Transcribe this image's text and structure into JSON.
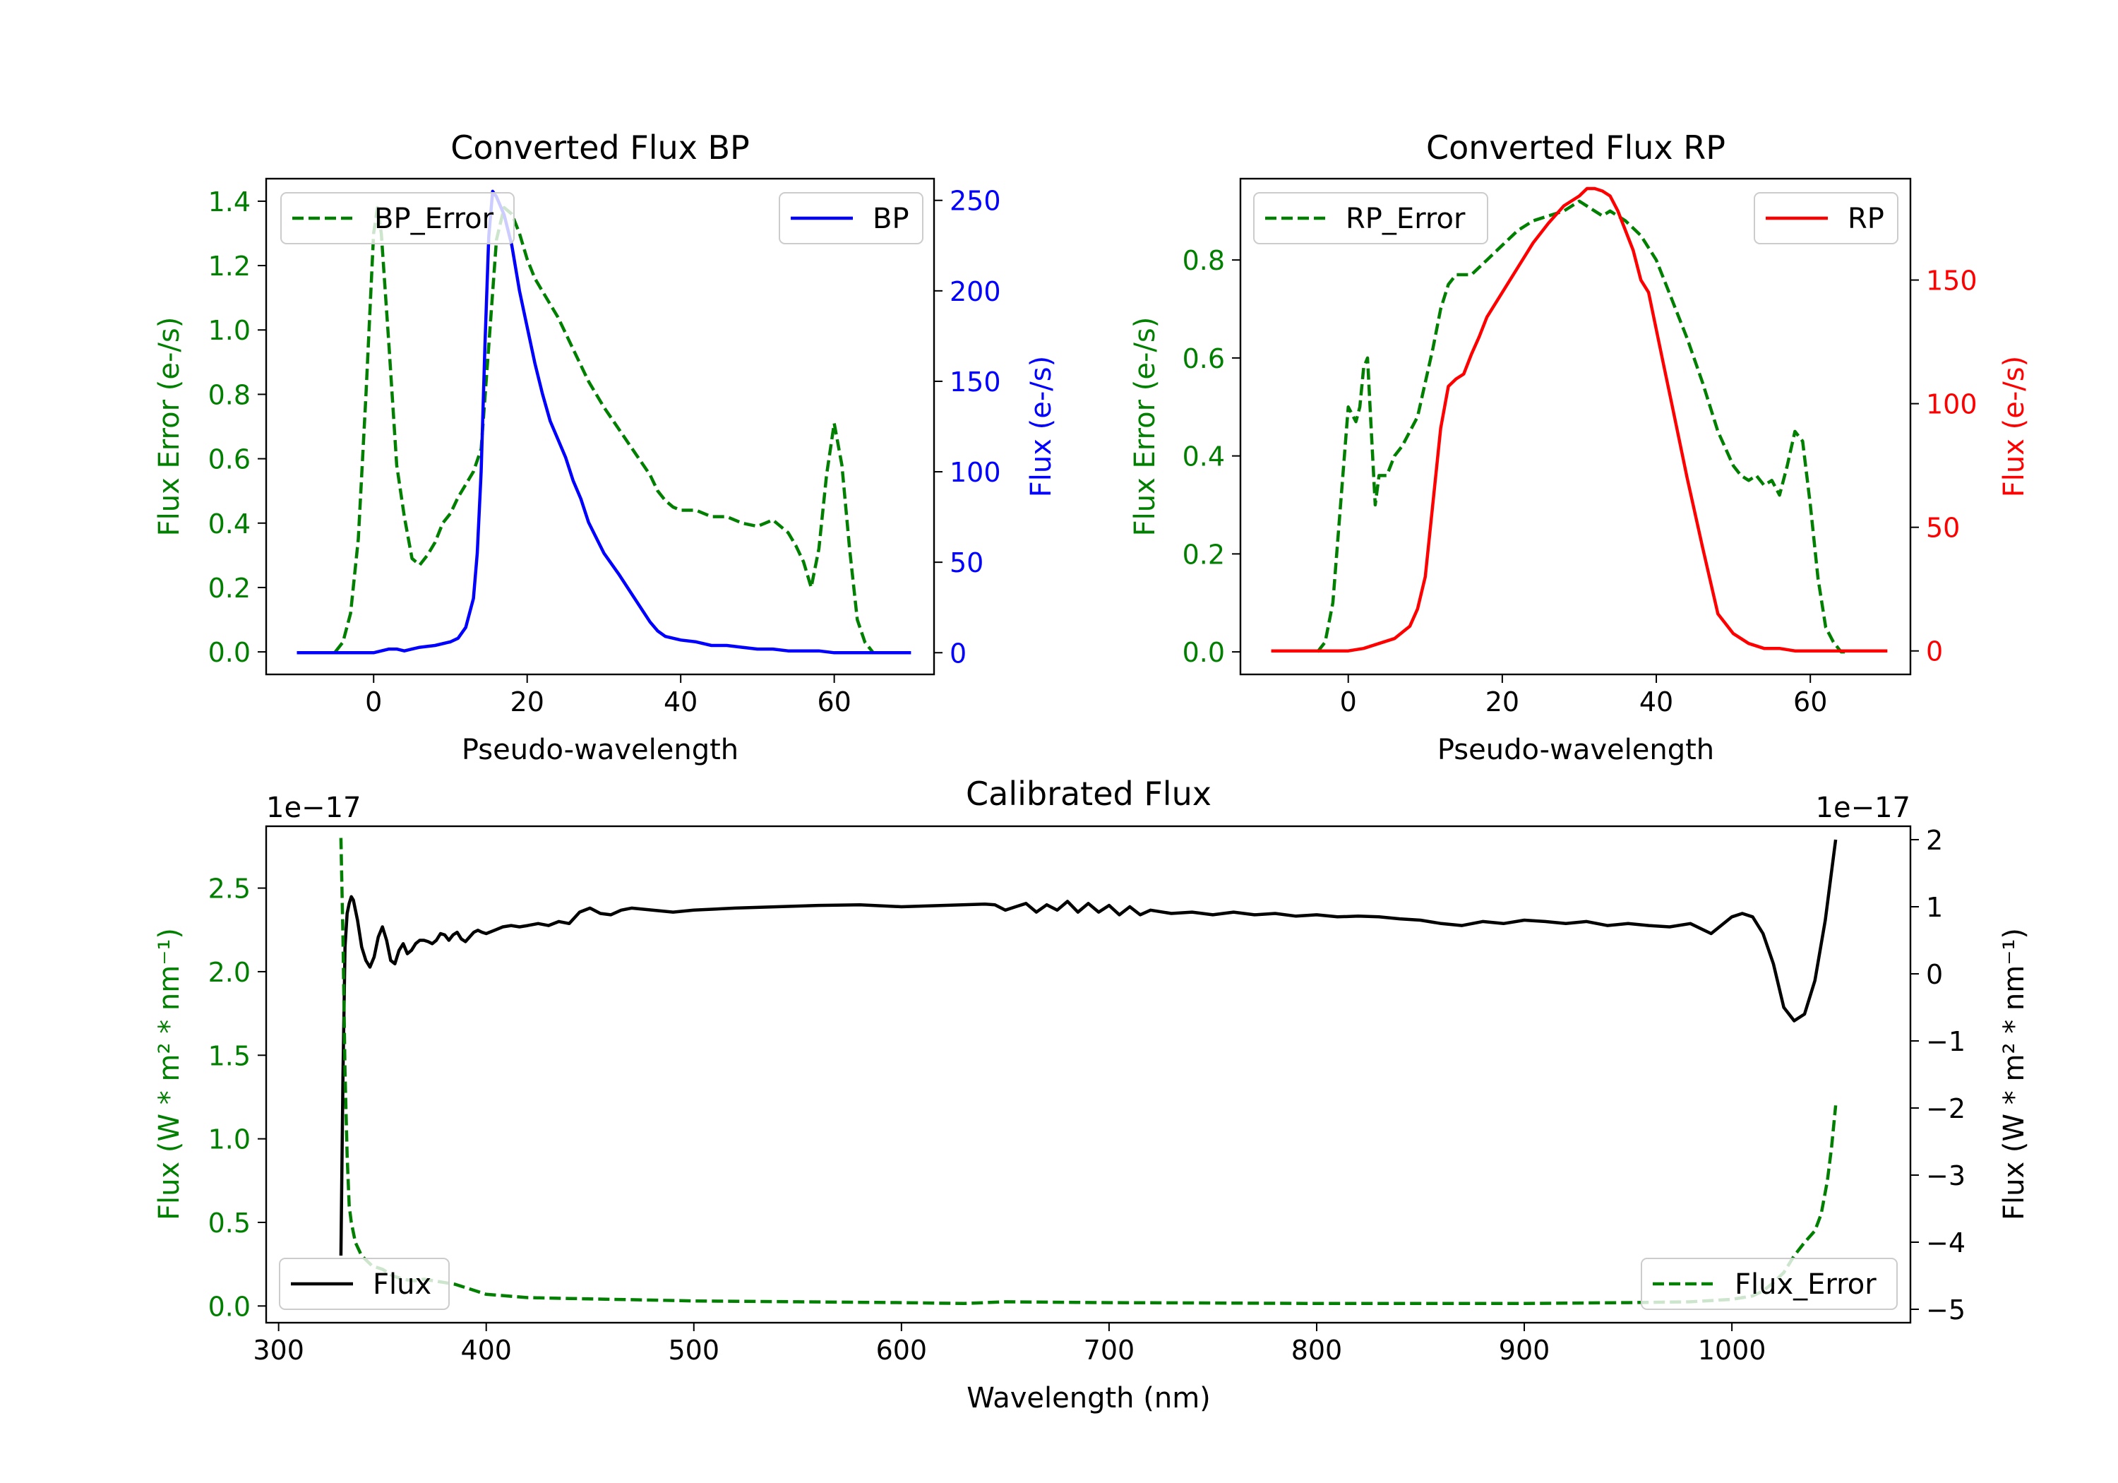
{
  "colors": {
    "green": "#007f00",
    "blue": "#0000ff",
    "red": "#ff0000",
    "black": "#000000"
  },
  "chart_data": [
    {
      "id": "bp",
      "type": "line",
      "title": "Converted Flux BP",
      "xlabel": "Pseudo-wavelength",
      "ylabel_left": "Flux Error (e-/s)",
      "ylabel_right": "Flux (e-/s)",
      "xlim": [
        -14,
        73
      ],
      "ylim_left": [
        -0.07,
        1.47
      ],
      "ylim_right": [
        -12,
        262
      ],
      "xticks": [
        0,
        20,
        40,
        60
      ],
      "yticks_left": [
        0.0,
        0.2,
        0.4,
        0.6,
        0.8,
        1.0,
        1.2,
        1.4
      ],
      "yticks_right": [
        0,
        50,
        100,
        150,
        200,
        250
      ],
      "legend_left": "top-left",
      "legend_right": "top-right",
      "series": [
        {
          "name": "BP_Error",
          "axis": "left",
          "color": "#007f00",
          "dash": "dashed",
          "x": [
            -5,
            -4,
            -3,
            -2,
            -1,
            0,
            0.5,
            1,
            2,
            3,
            4,
            5,
            6,
            7,
            8,
            9,
            10,
            11,
            12,
            13,
            14,
            15,
            16,
            17,
            18,
            19,
            20,
            21,
            22,
            23,
            24,
            25,
            26,
            27,
            28,
            30,
            32,
            34,
            36,
            37,
            38,
            39,
            40,
            42,
            44,
            46,
            48,
            50,
            51,
            52,
            54,
            55,
            56,
            57,
            58,
            59,
            60,
            61,
            62,
            63,
            64,
            65
          ],
          "values": [
            0.0,
            0.03,
            0.12,
            0.35,
            0.8,
            1.3,
            1.38,
            1.3,
            0.95,
            0.58,
            0.42,
            0.29,
            0.27,
            0.3,
            0.34,
            0.4,
            0.43,
            0.48,
            0.52,
            0.56,
            0.63,
            0.95,
            1.28,
            1.38,
            1.36,
            1.3,
            1.22,
            1.16,
            1.12,
            1.08,
            1.04,
            0.99,
            0.94,
            0.89,
            0.84,
            0.76,
            0.69,
            0.62,
            0.55,
            0.5,
            0.47,
            0.45,
            0.44,
            0.44,
            0.42,
            0.42,
            0.4,
            0.39,
            0.4,
            0.41,
            0.37,
            0.33,
            0.28,
            0.2,
            0.32,
            0.55,
            0.71,
            0.58,
            0.32,
            0.1,
            0.03,
            0.0
          ]
        },
        {
          "name": "BP",
          "axis": "right",
          "color": "#0000ff",
          "dash": "solid",
          "x": [
            -10,
            -5,
            0,
            1,
            2,
            3,
            4,
            5,
            6,
            8,
            10,
            11,
            12,
            13,
            13.5,
            14,
            14.5,
            15,
            15.5,
            16,
            17,
            18,
            19,
            20,
            21,
            22,
            23,
            24,
            25,
            26,
            27,
            28,
            30,
            32,
            34,
            36,
            37,
            38,
            40,
            42,
            44,
            46,
            48,
            50,
            52,
            54,
            56,
            58,
            60,
            62,
            65,
            70
          ],
          "values": [
            0,
            0,
            0,
            1,
            2,
            2,
            1,
            2,
            3,
            4,
            6,
            8,
            14,
            30,
            55,
            100,
            170,
            230,
            255,
            252,
            242,
            225,
            200,
            180,
            160,
            143,
            128,
            118,
            108,
            95,
            85,
            72,
            55,
            43,
            30,
            17,
            12,
            9,
            7,
            6,
            4,
            4,
            3,
            2,
            2,
            1,
            1,
            1,
            0,
            0,
            0,
            0
          ]
        }
      ]
    },
    {
      "id": "rp",
      "type": "line",
      "title": "Converted Flux RP",
      "xlabel": "Pseudo-wavelength",
      "ylabel_left": "Flux Error (e-/s)",
      "ylabel_right": "Flux (e-/s)",
      "xlim": [
        -14,
        73
      ],
      "ylim_left": [
        -0.046,
        0.966
      ],
      "ylim_right": [
        -9.5,
        191
      ],
      "xticks": [
        0,
        20,
        40,
        60
      ],
      "yticks_left": [
        0.0,
        0.2,
        0.4,
        0.6,
        0.8
      ],
      "yticks_right": [
        0,
        50,
        100,
        150
      ],
      "legend_left": "top-left",
      "legend_right": "top-right",
      "series": [
        {
          "name": "RP_Error",
          "axis": "left",
          "color": "#007f00",
          "dash": "dashed",
          "x": [
            -4,
            -3,
            -2,
            -1,
            0,
            1,
            1.5,
            2,
            2.5,
            3,
            3.5,
            4,
            5,
            6,
            7,
            8,
            9,
            10,
            11,
            12,
            13,
            14,
            15,
            16,
            18,
            20,
            22,
            24,
            26,
            28,
            30,
            31,
            32,
            33,
            34,
            36,
            38,
            40,
            42,
            44,
            46,
            48,
            50,
            51,
            52,
            53,
            54,
            55,
            56,
            57,
            58,
            59,
            60,
            61,
            62,
            63,
            64,
            65
          ],
          "values": [
            0.0,
            0.02,
            0.1,
            0.3,
            0.5,
            0.47,
            0.5,
            0.58,
            0.6,
            0.45,
            0.3,
            0.36,
            0.36,
            0.4,
            0.42,
            0.45,
            0.48,
            0.55,
            0.62,
            0.7,
            0.75,
            0.77,
            0.77,
            0.77,
            0.8,
            0.83,
            0.86,
            0.88,
            0.89,
            0.9,
            0.92,
            0.91,
            0.9,
            0.89,
            0.9,
            0.88,
            0.85,
            0.8,
            0.72,
            0.64,
            0.55,
            0.45,
            0.38,
            0.36,
            0.35,
            0.36,
            0.34,
            0.35,
            0.32,
            0.38,
            0.45,
            0.43,
            0.3,
            0.15,
            0.05,
            0.02,
            0.0,
            0.0
          ]
        },
        {
          "name": "RP",
          "axis": "right",
          "color": "#ff0000",
          "dash": "solid",
          "x": [
            -10,
            -5,
            0,
            2,
            4,
            6,
            8,
            9,
            10,
            11,
            12,
            13,
            14,
            15,
            16,
            17,
            18,
            19,
            20,
            22,
            24,
            26,
            28,
            30,
            31,
            32,
            33,
            34,
            35,
            36,
            37,
            38,
            39,
            40,
            41,
            42,
            44,
            46,
            48,
            50,
            52,
            54,
            56,
            58,
            60,
            62,
            65,
            70
          ],
          "values": [
            0,
            0,
            0,
            1,
            3,
            5,
            10,
            17,
            30,
            60,
            90,
            107,
            110,
            112,
            120,
            127,
            135,
            140,
            145,
            155,
            165,
            173,
            180,
            184,
            187,
            187,
            186,
            184,
            178,
            170,
            162,
            150,
            145,
            130,
            115,
            100,
            70,
            42,
            15,
            7,
            3,
            1,
            1,
            0,
            0,
            0,
            0,
            0
          ]
        }
      ]
    },
    {
      "id": "calibrated",
      "type": "line",
      "title": "Calibrated Flux",
      "xlabel": "Wavelength (nm)",
      "ylabel_left": "Flux (W * m² * nm⁻¹)",
      "ylabel_right": "Flux (W * m² * nm⁻¹)",
      "offset_left": "1e−17",
      "offset_right": "1e−17",
      "xlim": [
        294,
        1086
      ],
      "ylim_left": [
        -0.1,
        2.87
      ],
      "ylim_right": [
        -5.2,
        2.2
      ],
      "xticks": [
        300,
        400,
        500,
        600,
        700,
        800,
        900,
        1000
      ],
      "yticks_left": [
        0.0,
        0.5,
        1.0,
        1.5,
        2.0,
        2.5
      ],
      "yticks_right": [
        -5,
        -4,
        -3,
        -2,
        -1,
        0,
        1,
        2
      ],
      "legend_left": "bottom-left",
      "legend_right": "bottom-right",
      "series": [
        {
          "name": "Flux",
          "axis": "right",
          "color": "#000000",
          "dash": "solid",
          "x": [
            330,
            331,
            332,
            333,
            334,
            335,
            336,
            338,
            340,
            342,
            344,
            346,
            348,
            350,
            352,
            354,
            356,
            358,
            360,
            362,
            364,
            366,
            368,
            370,
            372,
            374,
            376,
            378,
            380,
            382,
            384,
            386,
            388,
            390,
            392,
            394,
            396,
            398,
            400,
            404,
            408,
            412,
            416,
            420,
            425,
            430,
            435,
            440,
            445,
            450,
            455,
            460,
            465,
            470,
            480,
            490,
            500,
            520,
            540,
            560,
            580,
            600,
            620,
            640,
            645,
            650,
            655,
            660,
            665,
            670,
            675,
            680,
            685,
            690,
            695,
            700,
            705,
            710,
            715,
            720,
            730,
            740,
            750,
            760,
            770,
            780,
            790,
            800,
            810,
            820,
            830,
            840,
            850,
            860,
            870,
            880,
            890,
            900,
            910,
            920,
            930,
            940,
            950,
            960,
            970,
            980,
            990,
            1000,
            1005,
            1010,
            1015,
            1020,
            1025,
            1030,
            1035,
            1040,
            1045,
            1050
          ],
          "values": [
            -4.2,
            -1.5,
            0.4,
            0.9,
            1.05,
            1.15,
            1.1,
            0.8,
            0.4,
            0.2,
            0.1,
            0.25,
            0.55,
            0.7,
            0.5,
            0.2,
            0.15,
            0.35,
            0.45,
            0.3,
            0.35,
            0.45,
            0.5,
            0.5,
            0.48,
            0.45,
            0.5,
            0.6,
            0.58,
            0.5,
            0.58,
            0.62,
            0.52,
            0.48,
            0.55,
            0.62,
            0.65,
            0.62,
            0.6,
            0.65,
            0.7,
            0.72,
            0.7,
            0.72,
            0.75,
            0.72,
            0.78,
            0.75,
            0.92,
            0.98,
            0.9,
            0.88,
            0.95,
            0.98,
            0.95,
            0.92,
            0.95,
            0.98,
            1.0,
            1.02,
            1.03,
            1.0,
            1.02,
            1.04,
            1.03,
            0.95,
            1.0,
            1.05,
            0.92,
            1.03,
            0.95,
            1.08,
            0.92,
            1.05,
            0.92,
            1.02,
            0.88,
            1.0,
            0.88,
            0.95,
            0.9,
            0.92,
            0.88,
            0.92,
            0.88,
            0.9,
            0.86,
            0.88,
            0.85,
            0.86,
            0.85,
            0.82,
            0.8,
            0.75,
            0.72,
            0.78,
            0.75,
            0.8,
            0.78,
            0.75,
            0.78,
            0.72,
            0.75,
            0.72,
            0.7,
            0.75,
            0.6,
            0.85,
            0.9,
            0.85,
            0.6,
            0.15,
            -0.5,
            -0.7,
            -0.6,
            -0.1,
            0.8,
            2.0
          ]
        },
        {
          "name": "Flux_Error",
          "axis": "left",
          "color": "#007f00",
          "dash": "dashed",
          "x": [
            330,
            331,
            332,
            333,
            334,
            335,
            337,
            340,
            345,
            350,
            355,
            360,
            365,
            370,
            375,
            380,
            385,
            390,
            395,
            400,
            410,
            420,
            440,
            460,
            480,
            500,
            550,
            600,
            630,
            640,
            650,
            700,
            750,
            800,
            850,
            900,
            950,
            980,
            1000,
            1010,
            1015,
            1020,
            1025,
            1030,
            1035,
            1040,
            1043,
            1046,
            1048,
            1050
          ],
          "values": [
            2.8,
            2.2,
            1.4,
            0.9,
            0.6,
            0.5,
            0.38,
            0.3,
            0.24,
            0.22,
            0.18,
            0.16,
            0.15,
            0.16,
            0.15,
            0.14,
            0.13,
            0.11,
            0.09,
            0.07,
            0.06,
            0.05,
            0.045,
            0.04,
            0.035,
            0.03,
            0.025,
            0.02,
            0.015,
            0.02,
            0.025,
            0.02,
            0.018,
            0.015,
            0.015,
            0.015,
            0.02,
            0.025,
            0.04,
            0.06,
            0.09,
            0.14,
            0.2,
            0.3,
            0.38,
            0.45,
            0.55,
            0.75,
            0.95,
            1.2
          ]
        }
      ]
    }
  ]
}
